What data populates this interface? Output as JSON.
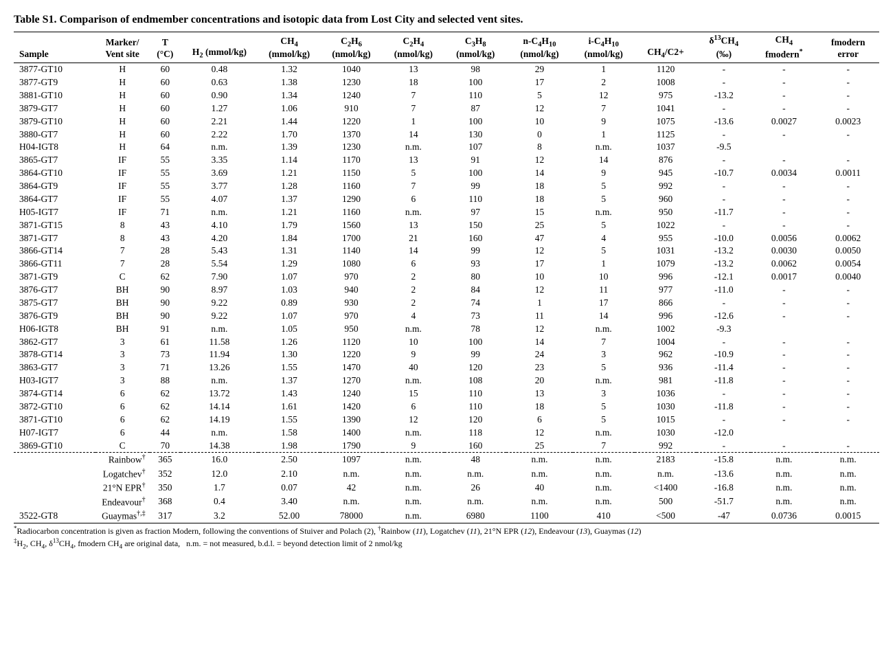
{
  "title": "Table S1.  Comparison of endmember concentrations and isotopic data from Lost City and selected vent sites.",
  "columns": {
    "sample": "Sample",
    "marker_l1": "Marker/",
    "marker_l2": "Vent site",
    "t_l1": "T",
    "t_l2": "(°C)",
    "h2": "H₂ (mmol/kg)",
    "ch4_l1": "CH₄",
    "ch4_l2": "(mmol/kg)",
    "c2h6_l1": "C₂H₆",
    "c2h6_l2": "(nmol/kg)",
    "c2h4_l1": "C₂H₄",
    "c2h4_l2": "(nmol/kg)",
    "c3h8_l1": "C₃H₈",
    "c3h8_l2": "(nmol/kg)",
    "nc4_l1": "n-C₄H₁₀",
    "nc4_l2": "(nmol/kg)",
    "ic4_l1": "i-C₄H₁₀",
    "ic4_l2": "(nmol/kg)",
    "ratio": "CH₄/C2+",
    "d13_l1": "δ¹³CH₄",
    "d13_l2": "(‰)",
    "fmod_l1": "CH₄",
    "fmod_l2": "fmodern",
    "fmoderr_l1": "fmodern",
    "fmoderr_l2": "error"
  },
  "rows": [
    {
      "sample": "3877-GT10",
      "marker": "H",
      "t": "60",
      "h2": "0.48",
      "ch4": "1.32",
      "c2h6": "1040",
      "c2h4": "13",
      "c3h8": "98",
      "nc4": "29",
      "ic4": "1",
      "ratio": "1120",
      "d13": "-",
      "fm": "-",
      "fe": "-"
    },
    {
      "sample": "3877-GT9",
      "marker": "H",
      "t": "60",
      "h2": "0.63",
      "ch4": "1.38",
      "c2h6": "1230",
      "c2h4": "18",
      "c3h8": "100",
      "nc4": "17",
      "ic4": "2",
      "ratio": "1008",
      "d13": "-",
      "fm": "-",
      "fe": "-"
    },
    {
      "sample": "3881-GT10",
      "marker": "H",
      "t": "60",
      "h2": "0.90",
      "ch4": "1.34",
      "c2h6": "1240",
      "c2h4": "7",
      "c3h8": "110",
      "nc4": "5",
      "ic4": "12",
      "ratio": "975",
      "d13": "-13.2",
      "fm": "-",
      "fe": "-"
    },
    {
      "sample": "3879-GT7",
      "marker": "H",
      "t": "60",
      "h2": "1.27",
      "ch4": "1.06",
      "c2h6": "910",
      "c2h4": "7",
      "c3h8": "87",
      "nc4": "12",
      "ic4": "7",
      "ratio": "1041",
      "d13": "-",
      "fm": "-",
      "fe": "-"
    },
    {
      "sample": "3879-GT10",
      "marker": "H",
      "t": "60",
      "h2": "2.21",
      "ch4": "1.44",
      "c2h6": "1220",
      "c2h4": "1",
      "c3h8": "100",
      "nc4": "10",
      "ic4": "9",
      "ratio": "1075",
      "d13": "-13.6",
      "fm": "0.0027",
      "fe": "0.0023"
    },
    {
      "sample": "3880-GT7",
      "marker": "H",
      "t": "60",
      "h2": "2.22",
      "ch4": "1.70",
      "c2h6": "1370",
      "c2h4": "14",
      "c3h8": "130",
      "nc4": "0",
      "ic4": "1",
      "ratio": "1125",
      "d13": "-",
      "fm": "-",
      "fe": "-"
    },
    {
      "sample": "H04-IGT8",
      "marker": "H",
      "t": "64",
      "h2": "n.m.",
      "ch4": "1.39",
      "c2h6": "1230",
      "c2h4": "n.m.",
      "c3h8": "107",
      "nc4": "8",
      "ic4": "n.m.",
      "ratio": "1037",
      "d13": "-9.5",
      "fm": "",
      "fe": ""
    },
    {
      "sample": "3865-GT7",
      "marker": "IF",
      "t": "55",
      "h2": "3.35",
      "ch4": "1.14",
      "c2h6": "1170",
      "c2h4": "13",
      "c3h8": "91",
      "nc4": "12",
      "ic4": "14",
      "ratio": "876",
      "d13": "-",
      "fm": "-",
      "fe": "-"
    },
    {
      "sample": "3864-GT10",
      "marker": "IF",
      "t": "55",
      "h2": "3.69",
      "ch4": "1.21",
      "c2h6": "1150",
      "c2h4": "5",
      "c3h8": "100",
      "nc4": "14",
      "ic4": "9",
      "ratio": "945",
      "d13": "-10.7",
      "fm": "0.0034",
      "fe": "0.0011"
    },
    {
      "sample": "3864-GT9",
      "marker": "IF",
      "t": "55",
      "h2": "3.77",
      "ch4": "1.28",
      "c2h6": "1160",
      "c2h4": "7",
      "c3h8": "99",
      "nc4": "18",
      "ic4": "5",
      "ratio": "992",
      "d13": "-",
      "fm": "-",
      "fe": "-"
    },
    {
      "sample": "3864-GT7",
      "marker": "IF",
      "t": "55",
      "h2": "4.07",
      "ch4": "1.37",
      "c2h6": "1290",
      "c2h4": "6",
      "c3h8": "110",
      "nc4": "18",
      "ic4": "5",
      "ratio": "960",
      "d13": "-",
      "fm": "-",
      "fe": "-"
    },
    {
      "sample": "H05-IGT7",
      "marker": "IF",
      "t": "71",
      "h2": "n.m.",
      "ch4": "1.21",
      "c2h6": "1160",
      "c2h4": "n.m.",
      "c3h8": "97",
      "nc4": "15",
      "ic4": "n.m.",
      "ratio": "950",
      "d13": "-11.7",
      "fm": "-",
      "fe": "-"
    },
    {
      "sample": "3871-GT15",
      "marker": "8",
      "t": "43",
      "h2": "4.10",
      "ch4": "1.79",
      "c2h6": "1560",
      "c2h4": "13",
      "c3h8": "150",
      "nc4": "25",
      "ic4": "5",
      "ratio": "1022",
      "d13": "-",
      "fm": "-",
      "fe": "-"
    },
    {
      "sample": "3871-GT7",
      "marker": "8",
      "t": "43",
      "h2": "4.20",
      "ch4": "1.84",
      "c2h6": "1700",
      "c2h4": "21",
      "c3h8": "160",
      "nc4": "47",
      "ic4": "4",
      "ratio": "955",
      "d13": "-10.0",
      "fm": "0.0056",
      "fe": "0.0062"
    },
    {
      "sample": "3866-GT14",
      "marker": "7",
      "t": "28",
      "h2": "5.43",
      "ch4": "1.31",
      "c2h6": "1140",
      "c2h4": "14",
      "c3h8": "99",
      "nc4": "12",
      "ic4": "5",
      "ratio": "1031",
      "d13": "-13.2",
      "fm": "0.0030",
      "fe": "0.0050"
    },
    {
      "sample": "3866-GT11",
      "marker": "7",
      "t": "28",
      "h2": "5.54",
      "ch4": "1.29",
      "c2h6": "1080",
      "c2h4": "6",
      "c3h8": "93",
      "nc4": "17",
      "ic4": "1",
      "ratio": "1079",
      "d13": "-13.2",
      "fm": "0.0062",
      "fe": "0.0054"
    },
    {
      "sample": "3871-GT9",
      "marker": "C",
      "t": "62",
      "h2": "7.90",
      "ch4": "1.07",
      "c2h6": "970",
      "c2h4": "2",
      "c3h8": "80",
      "nc4": "10",
      "ic4": "10",
      "ratio": "996",
      "d13": "-12.1",
      "fm": "0.0017",
      "fe": "0.0040"
    },
    {
      "sample": "3876-GT7",
      "marker": "BH",
      "t": "90",
      "h2": "8.97",
      "ch4": "1.03",
      "c2h6": "940",
      "c2h4": "2",
      "c3h8": "84",
      "nc4": "12",
      "ic4": "11",
      "ratio": "977",
      "d13": "-11.0",
      "fm": "-",
      "fe": "-"
    },
    {
      "sample": "3875-GT7",
      "marker": "BH",
      "t": "90",
      "h2": "9.22",
      "ch4": "0.89",
      "c2h6": "930",
      "c2h4": "2",
      "c3h8": "74",
      "nc4": "1",
      "ic4": "17",
      "ratio": "866",
      "d13": "-",
      "fm": "-",
      "fe": "-"
    },
    {
      "sample": "3876-GT9",
      "marker": "BH",
      "t": "90",
      "h2": "9.22",
      "ch4": "1.07",
      "c2h6": "970",
      "c2h4": "4",
      "c3h8": "73",
      "nc4": "11",
      "ic4": "14",
      "ratio": "996",
      "d13": "-12.6",
      "fm": "-",
      "fe": "-"
    },
    {
      "sample": "H06-IGT8",
      "marker": "BH",
      "t": "91",
      "h2": "n.m.",
      "ch4": "1.05",
      "c2h6": "950",
      "c2h4": "n.m.",
      "c3h8": "78",
      "nc4": "12",
      "ic4": "n.m.",
      "ratio": "1002",
      "d13": "-9.3",
      "fm": "",
      "fe": ""
    },
    {
      "sample": "3862-GT7",
      "marker": "3",
      "t": "61",
      "h2": "11.58",
      "ch4": "1.26",
      "c2h6": "1120",
      "c2h4": "10",
      "c3h8": "100",
      "nc4": "14",
      "ic4": "7",
      "ratio": "1004",
      "d13": "-",
      "fm": "-",
      "fe": "-"
    },
    {
      "sample": "3878-GT14",
      "marker": "3",
      "t": "73",
      "h2": "11.94",
      "ch4": "1.30",
      "c2h6": "1220",
      "c2h4": "9",
      "c3h8": "99",
      "nc4": "24",
      "ic4": "3",
      "ratio": "962",
      "d13": "-10.9",
      "fm": "-",
      "fe": "-"
    },
    {
      "sample": "3863-GT7",
      "marker": "3",
      "t": "71",
      "h2": "13.26",
      "ch4": "1.55",
      "c2h6": "1470",
      "c2h4": "40",
      "c3h8": "120",
      "nc4": "23",
      "ic4": "5",
      "ratio": "936",
      "d13": "-11.4",
      "fm": "-",
      "fe": "-"
    },
    {
      "sample": "H03-IGT7",
      "marker": "3",
      "t": "88",
      "h2": "n.m.",
      "ch4": "1.37",
      "c2h6": "1270",
      "c2h4": "n.m.",
      "c3h8": "108",
      "nc4": "20",
      "ic4": "n.m.",
      "ratio": "981",
      "d13": "-11.8",
      "fm": "-",
      "fe": "-"
    },
    {
      "sample": "3874-GT14",
      "marker": "6",
      "t": "62",
      "h2": "13.72",
      "ch4": "1.43",
      "c2h6": "1240",
      "c2h4": "15",
      "c3h8": "110",
      "nc4": "13",
      "ic4": "3",
      "ratio": "1036",
      "d13": "-",
      "fm": "-",
      "fe": "-"
    },
    {
      "sample": "3872-GT10",
      "marker": "6",
      "t": "62",
      "h2": "14.14",
      "ch4": "1.61",
      "c2h6": "1420",
      "c2h4": "6",
      "c3h8": "110",
      "nc4": "18",
      "ic4": "5",
      "ratio": "1030",
      "d13": "-11.8",
      "fm": "-",
      "fe": "-"
    },
    {
      "sample": "3871-GT10",
      "marker": "6",
      "t": "62",
      "h2": "14.19",
      "ch4": "1.55",
      "c2h6": "1390",
      "c2h4": "12",
      "c3h8": "120",
      "nc4": "6",
      "ic4": "5",
      "ratio": "1015",
      "d13": "-",
      "fm": "-",
      "fe": "-"
    },
    {
      "sample": "H07-IGT7",
      "marker": "6",
      "t": "44",
      "h2": "n.m.",
      "ch4": "1.58",
      "c2h6": "1400",
      "c2h4": "n.m.",
      "c3h8": "118",
      "nc4": "12",
      "ic4": "n.m.",
      "ratio": "1030",
      "d13": "-12.0",
      "fm": "",
      "fe": ""
    },
    {
      "sample": "3869-GT10",
      "marker": "C",
      "t": "70",
      "h2": "14.38",
      "ch4": "1.98",
      "c2h6": "1790",
      "c2h4": "9",
      "c3h8": "160",
      "nc4": "25",
      "ic4": "7",
      "ratio": "992",
      "d13": "-",
      "fm": "-",
      "fe": "-",
      "dashed": true
    }
  ],
  "comp_rows": [
    {
      "site": "Rainbow",
      "dagger": "†",
      "t": "365",
      "h2": "16.0",
      "ch4": "2.50",
      "c2h6": "1097",
      "c2h4": "n.m.",
      "c3h8": "48",
      "nc4": "n.m.",
      "ic4": "n.m.",
      "ratio": "2183",
      "d13": "-15.8",
      "fm": "n.m.",
      "fe": "n.m."
    },
    {
      "site": "Logatchev",
      "dagger": "†",
      "t": "352",
      "h2": "12.0",
      "ch4": "2.10",
      "c2h6": "n.m.",
      "c2h4": "n.m.",
      "c3h8": "n.m.",
      "nc4": "n.m.",
      "ic4": "n.m.",
      "ratio": "n.m.",
      "d13": "-13.6",
      "fm": "n.m.",
      "fe": "n.m."
    },
    {
      "site": "21°N EPR",
      "dagger": "†",
      "t": "350",
      "h2": "1.7",
      "ch4": "0.07",
      "c2h6": "42",
      "c2h4": "n.m.",
      "c3h8": "26",
      "nc4": "40",
      "ic4": "n.m.",
      "ratio": "<1400",
      "d13": "-16.8",
      "fm": "n.m.",
      "fe": "n.m."
    },
    {
      "site": "Endeavour",
      "dagger": "†",
      "t": "368",
      "h2": "0.4",
      "ch4": "3.40",
      "c2h6": "n.m.",
      "c2h4": "n.m.",
      "c3h8": "n.m.",
      "nc4": "n.m.",
      "ic4": "n.m.",
      "ratio": "500",
      "d13": "-51.7",
      "fm": "n.m.",
      "fe": "n.m."
    },
    {
      "sample": "3522-GT8",
      "site": "Guaymas",
      "dagger": "†,‡",
      "t": "317",
      "h2": "3.2",
      "ch4": "52.00",
      "c2h6": "78000",
      "c2h4": "n.m.",
      "c3h8": "6980",
      "nc4": "1100",
      "ic4": "410",
      "ratio": "<500",
      "d13": "-47",
      "fm": "0.0736",
      "fe": "0.0015",
      "solid": true
    }
  ],
  "footnotes": {
    "l1_pre": "*",
    "l1": "Radiocarbon concentration is given as fraction Modern, following the conventions of Stuiver and Polach (2),  ",
    "l1_dag": "†",
    "l1_after": "Rainbow (11), Logatchev (11), 21°N EPR (12), Endeavour (13), Guaymas (12)",
    "l2_pre": "‡",
    "l2": "H₂, CH₄, δ¹³CH₄, fmodern CH₄ are original data,   n.m. = not measured, b.d.l. = beyond detection limit of 2 nmol/kg"
  },
  "colwidths": {
    "sample": 105,
    "marker": 70,
    "t": 40,
    "h2": 100,
    "ch4": 80,
    "c2h6": 80,
    "c2h4": 80,
    "c3h8": 80,
    "nc4": 85,
    "ic4": 80,
    "ratio": 80,
    "d13": 70,
    "fm": 85,
    "fe": 80
  }
}
